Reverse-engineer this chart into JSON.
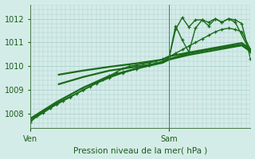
{
  "title": "Pression niveau de la mer( hPa )",
  "ylabel_ticks": [
    1008,
    1009,
    1010,
    1011,
    1012
  ],
  "xtick_labels": [
    "Ven",
    "Sam"
  ],
  "xtick_pos": [
    0.0,
    0.63
  ],
  "bg_color": "#d4ece8",
  "grid_color": "#a8cccc",
  "line_color": "#1a6b1a",
  "vline_x": 0.63,
  "ylim": [
    1007.4,
    1012.6
  ],
  "xlim": [
    0.0,
    1.0
  ],
  "lines": [
    {
      "x": [
        0.0,
        0.03,
        0.06,
        0.09,
        0.12,
        0.15,
        0.18,
        0.21,
        0.24,
        0.27,
        0.3,
        0.33,
        0.36,
        0.39,
        0.42,
        0.45,
        0.48,
        0.51,
        0.54,
        0.57,
        0.6,
        0.63,
        0.66,
        0.69,
        0.72,
        0.75,
        0.78,
        0.81,
        0.84,
        0.87,
        0.9,
        0.93,
        0.96,
        1.0
      ],
      "y": [
        1007.65,
        1007.9,
        1008.1,
        1008.25,
        1008.4,
        1008.55,
        1008.7,
        1008.85,
        1009.0,
        1009.15,
        1009.3,
        1009.45,
        1009.6,
        1009.75,
        1009.9,
        1010.0,
        1010.05,
        1010.1,
        1010.15,
        1010.2,
        1010.3,
        1010.4,
        1010.55,
        1010.7,
        1010.85,
        1011.0,
        1011.15,
        1011.3,
        1011.45,
        1011.55,
        1011.6,
        1011.55,
        1011.45,
        1010.7
      ],
      "marker": true,
      "lw": 1.0
    },
    {
      "x": [
        0.0,
        0.06,
        0.12,
        0.18,
        0.24,
        0.3,
        0.36,
        0.42,
        0.48,
        0.54,
        0.6,
        0.63,
        0.66,
        0.69,
        0.72,
        0.75,
        0.78,
        0.81,
        0.84,
        0.87,
        0.9,
        0.93,
        0.96,
        1.0
      ],
      "y": [
        1007.7,
        1008.05,
        1008.4,
        1008.7,
        1009.0,
        1009.3,
        1009.55,
        1009.75,
        1009.9,
        1010.05,
        1010.2,
        1010.35,
        1011.7,
        1011.1,
        1010.6,
        1011.6,
        1011.95,
        1011.85,
        1012.0,
        1011.85,
        1012.0,
        1011.95,
        1011.8,
        1010.3
      ],
      "marker": true,
      "lw": 1.0
    },
    {
      "x": [
        0.0,
        0.06,
        0.12,
        0.18,
        0.24,
        0.3,
        0.36,
        0.42,
        0.48,
        0.54,
        0.6,
        0.63,
        0.66,
        0.69,
        0.72,
        0.75,
        0.78,
        0.81,
        0.84,
        0.87,
        0.9,
        0.93,
        1.0
      ],
      "y": [
        1007.75,
        1008.1,
        1008.45,
        1008.72,
        1009.0,
        1009.28,
        1009.52,
        1009.72,
        1009.88,
        1010.05,
        1010.2,
        1010.35,
        1011.55,
        1012.05,
        1011.65,
        1011.95,
        1011.95,
        1011.7,
        1012.0,
        1011.85,
        1012.0,
        1011.85,
        1010.6
      ],
      "marker": true,
      "lw": 1.0
    },
    {
      "x": [
        0.0,
        0.12,
        0.24,
        0.36,
        0.48,
        0.6,
        0.63,
        0.72,
        0.84,
        0.96,
        1.0
      ],
      "y": [
        1007.8,
        1008.5,
        1009.1,
        1009.6,
        1009.9,
        1010.15,
        1010.3,
        1010.55,
        1010.75,
        1010.9,
        1010.65
      ],
      "marker": false,
      "lw": 1.6
    },
    {
      "x": [
        0.13,
        0.24,
        0.36,
        0.48,
        0.6,
        0.63,
        0.72,
        0.84,
        0.96,
        1.0
      ],
      "y": [
        1009.25,
        1009.55,
        1009.82,
        1009.98,
        1010.15,
        1010.28,
        1010.48,
        1010.68,
        1010.88,
        1010.62
      ],
      "marker": false,
      "lw": 1.6
    },
    {
      "x": [
        0.13,
        0.24,
        0.36,
        0.48,
        0.6,
        0.63,
        0.72,
        0.84,
        0.96,
        1.0
      ],
      "y": [
        1009.65,
        1009.82,
        1009.98,
        1010.12,
        1010.28,
        1010.42,
        1010.58,
        1010.78,
        1010.98,
        1010.72
      ],
      "marker": false,
      "lw": 1.6
    }
  ]
}
